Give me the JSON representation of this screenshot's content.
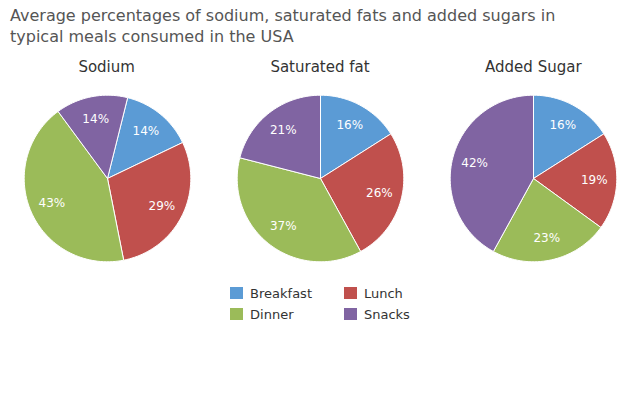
{
  "title": "Average percentages of sodium, saturated fats and added sugars in\ntypical meals consumed in the USA",
  "chart_data": [
    {
      "type": "pie",
      "title": "Sodium",
      "categories": [
        "Breakfast",
        "Lunch",
        "Dinner",
        "Snacks"
      ],
      "values": [
        14,
        29,
        43,
        14
      ],
      "value_labels": [
        "14%",
        "29%",
        "43%",
        "14%"
      ],
      "colors": [
        "#5b9bd5",
        "#c0504d",
        "#9bbb59",
        "#8064a2"
      ],
      "data_labels": true,
      "legend": "bottom"
    },
    {
      "type": "pie",
      "title": "Saturated fat",
      "categories": [
        "Breakfast",
        "Lunch",
        "Dinner",
        "Snacks"
      ],
      "values": [
        16,
        26,
        37,
        21
      ],
      "value_labels": [
        "16%",
        "26%",
        "37%",
        "21%"
      ],
      "colors": [
        "#5b9bd5",
        "#c0504d",
        "#9bbb59",
        "#8064a2"
      ],
      "data_labels": true,
      "legend": "bottom"
    },
    {
      "type": "pie",
      "title": "Added Sugar",
      "categories": [
        "Breakfast",
        "Lunch",
        "Dinner",
        "Snacks"
      ],
      "values": [
        16,
        19,
        23,
        42
      ],
      "value_labels": [
        "16%",
        "19%",
        "23%",
        "42%"
      ],
      "colors": [
        "#5b9bd5",
        "#c0504d",
        "#9bbb59",
        "#8064a2"
      ],
      "data_labels": true,
      "legend": "bottom"
    }
  ]
}
